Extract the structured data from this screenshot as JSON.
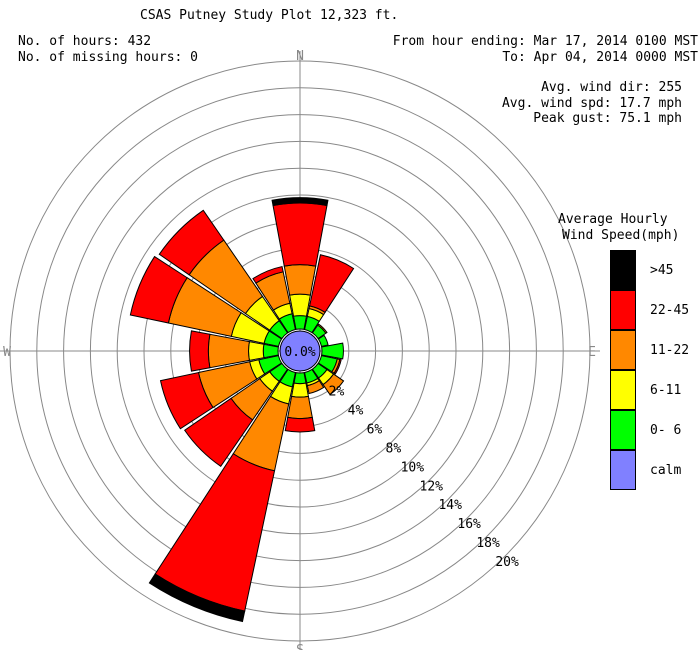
{
  "header": {
    "title": "CSAS Putney Study Plot 12,323 ft.",
    "hours": "No. of hours: 432",
    "missing": "No. of missing hours: 0",
    "from": "From hour ending: Mar 17, 2014 0100 MST",
    "to": "To: Apr 04, 2014 0000 MST",
    "avg_dir": "Avg. wind dir: 255",
    "avg_spd": "Avg. wind spd: 17.7 mph",
    "peak": "Peak gust: 75.1 mph"
  },
  "legend": {
    "title1": "Average Hourly",
    "title2": "Wind Speed(mph)",
    "items": [
      {
        "label": ">45",
        "color": "#000000"
      },
      {
        "label": "22-45",
        "color": "#ff0000"
      },
      {
        "label": "11-22",
        "color": "#ff8800"
      },
      {
        "label": "6-11",
        "color": "#ffff00"
      },
      {
        "label": "0- 6",
        "color": "#00ff00"
      },
      {
        "label": "calm",
        "color": "#8080ff"
      }
    ]
  },
  "chart_data": {
    "type": "polar-bar",
    "title": "CSAS Putney Study Plot 12,323 ft.",
    "compass": [
      "N",
      "E",
      "S",
      "W"
    ],
    "calm_label": "0.0%",
    "ring_labels": [
      "2%",
      "4%",
      "6%",
      "8%",
      "10%",
      "12%",
      "14%",
      "16%",
      "18%",
      "20%"
    ],
    "rmax": 20,
    "bin_names": [
      "0- 6",
      "6-11",
      "11-22",
      "22-45",
      ">45"
    ],
    "bin_colors": [
      "#00ff00",
      "#ffff00",
      "#ff8800",
      "#ff0000",
      "#000000"
    ],
    "directions": [
      {
        "dir": "N",
        "cum": [
          1.0,
          2.6,
          4.8,
          9.4,
          9.8
        ]
      },
      {
        "dir": "NNE",
        "cum": [
          1.0,
          1.6,
          1.8,
          5.7,
          5.7
        ]
      },
      {
        "dir": "NE",
        "cum": [
          0.7,
          0.7,
          0.8,
          0.8,
          0.8
        ]
      },
      {
        "dir": "ENE",
        "cum": [
          0.5,
          0.5,
          0.5,
          0.5,
          0.5
        ]
      },
      {
        "dir": "E",
        "cum": [
          1.6,
          1.6,
          1.6,
          1.6,
          1.6
        ]
      },
      {
        "dir": "ESE",
        "cum": [
          1.2,
          1.2,
          1.4,
          1.5,
          1.5
        ]
      },
      {
        "dir": "SE",
        "cum": [
          0.8,
          1.4,
          2.3,
          2.3,
          2.3
        ]
      },
      {
        "dir": "SSE",
        "cum": [
          0.8,
          1.0,
          1.6,
          1.6,
          1.6
        ]
      },
      {
        "dir": "S",
        "cum": [
          0.8,
          1.8,
          3.4,
          4.4,
          4.4
        ]
      },
      {
        "dir": "SSW",
        "cum": [
          1.1,
          2.4,
          7.5,
          18.2,
          19.0
        ]
      },
      {
        "dir": "SW",
        "cum": [
          1.1,
          2.0,
          4.6,
          8.8,
          8.8
        ]
      },
      {
        "dir": "WSW",
        "cum": [
          1.5,
          2.2,
          6.1,
          9.0,
          9.0
        ]
      },
      {
        "dir": "W",
        "cum": [
          1.1,
          2.2,
          5.2,
          6.6,
          6.6
        ]
      },
      {
        "dir": "WNW",
        "cum": [
          1.1,
          3.6,
          8.4,
          11.3,
          11.3
        ]
      },
      {
        "dir": "NW",
        "cum": [
          1.1,
          3.3,
          8.4,
          11.1,
          11.1
        ]
      },
      {
        "dir": "NNW",
        "cum": [
          1.2,
          2.0,
          4.4,
          4.8,
          4.8
        ]
      }
    ]
  }
}
